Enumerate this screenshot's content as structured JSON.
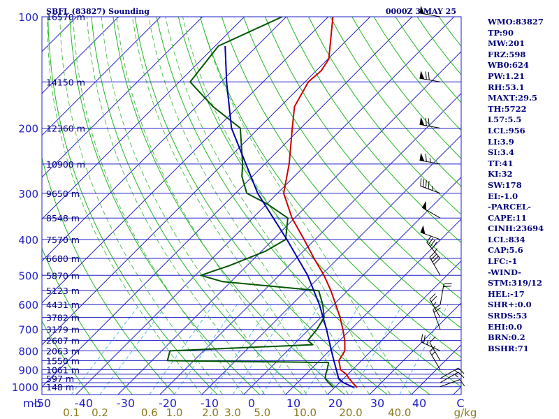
{
  "header": {
    "station": "SBFL (83827) Sounding",
    "time": "0000Z  3 MAY 25"
  },
  "indices": [
    "WMO:83827",
    "TP:90",
    "MW:201",
    "FRZ:598",
    "WB0:624",
    "PW:1.21",
    "RH:53.1",
    "MAXT:29.5",
    "TH:5722",
    "L57:5.5",
    "LCL:956",
    "LI:3.9",
    "SI:3.4",
    "TT:41",
    "KI:32",
    "SW:178",
    "EI:-1.0",
    "-PARCEL-",
    "CAPE:11",
    "CINH:23694",
    "LCL:834",
    "CAP:5.6",
    "LFC:-1",
    "-WIND-",
    "STM:319/12",
    "HEL:-17",
    "SHR+:0.0",
    "SRDS:53",
    "EHI:0.0",
    "BRN:0.2",
    "BSHR:71"
  ],
  "colors": {
    "isobar": "#1f1fc8",
    "isotherm": "#1f1fc8",
    "dry_adiabat": "#22b822",
    "moist_adiabat": "#55c055",
    "mixing_ratio": "#55b8e8",
    "temperature": "#cc0000",
    "dewpoint": "#005500",
    "parcel": "#0000aa",
    "wind": "#000000",
    "text": "#00007a"
  },
  "chart_data": {
    "type": "skew-t",
    "title": "SBFL (83827) Sounding",
    "xlabel": "C",
    "ylabel": "mb",
    "x_ticks": [
      "-50",
      "-40",
      "-30",
      "-20",
      "-10",
      "0",
      "10",
      "20",
      "30",
      "40"
    ],
    "mixing_ratio_ticks": [
      "0.1",
      "0.2",
      "0.6",
      "1.0",
      "2.0",
      "3.0",
      "5.0",
      "10.0",
      "20.0",
      "40.0"
    ],
    "mixing_ratio_unit": "g/kg",
    "pressure_ticks": [
      "100",
      "200",
      "300",
      "400",
      "500",
      "600",
      "700",
      "800",
      "900",
      "1000"
    ],
    "pressure_levels": [
      100,
      150,
      200,
      250,
      300,
      350,
      400,
      450,
      500,
      550,
      600,
      650,
      700,
      750,
      800,
      850,
      900,
      925,
      950,
      975,
      1000
    ],
    "xlim": [
      -50,
      50
    ],
    "plim": [
      1050,
      100
    ],
    "heights": [
      {
        "p": 100,
        "label": "16570 m"
      },
      {
        "p": 150,
        "label": "14150 m"
      },
      {
        "p": 200,
        "label": "12360 m"
      },
      {
        "p": 250,
        "label": "10900 m"
      },
      {
        "p": 300,
        "label": "9650 m"
      },
      {
        "p": 350,
        "label": "8548 m"
      },
      {
        "p": 400,
        "label": "7570 m"
      },
      {
        "p": 450,
        "label": "6680 m"
      },
      {
        "p": 500,
        "label": "5870 m"
      },
      {
        "p": 550,
        "label": "5123 m"
      },
      {
        "p": 600,
        "label": "4431 m"
      },
      {
        "p": 650,
        "label": "3782 m"
      },
      {
        "p": 700,
        "label": "3179 m"
      },
      {
        "p": 750,
        "label": "2607 m"
      },
      {
        "p": 800,
        "label": "2063 m"
      },
      {
        "p": 850,
        "label": "1550 m"
      },
      {
        "p": 900,
        "label": "1061 m"
      },
      {
        "p": 950,
        "label": "597 m"
      },
      {
        "p": 1000,
        "label": "148 m"
      }
    ],
    "series": [
      {
        "role": "temperature",
        "points": [
          [
            1005,
            25.4
          ],
          [
            1000,
            25.0
          ],
          [
            975,
            23.1
          ],
          [
            950,
            21.3
          ],
          [
            925,
            19.6
          ],
          [
            900,
            17.2
          ],
          [
            850,
            14.6
          ],
          [
            800,
            13.7
          ],
          [
            750,
            11.2
          ],
          [
            700,
            8.1
          ],
          [
            650,
            4.6
          ],
          [
            600,
            0.5
          ],
          [
            550,
            -4.0
          ],
          [
            500,
            -9.3
          ],
          [
            450,
            -15.7
          ],
          [
            400,
            -22.6
          ],
          [
            350,
            -30.6
          ],
          [
            300,
            -38.5
          ],
          [
            250,
            -44.2
          ],
          [
            200,
            -52.0
          ],
          [
            175,
            -56.6
          ],
          [
            150,
            -59.2
          ],
          [
            140,
            -58.8
          ],
          [
            130,
            -59.8
          ],
          [
            100,
            -68.9
          ]
        ]
      },
      {
        "role": "dewpoint",
        "points": [
          [
            1005,
            19.5
          ],
          [
            1000,
            19.4
          ],
          [
            975,
            17.4
          ],
          [
            950,
            15.6
          ],
          [
            925,
            14.7
          ],
          [
            900,
            14.0
          ],
          [
            860,
            12.6
          ],
          [
            850,
            -26.3
          ],
          [
            800,
            -28.0
          ],
          [
            770,
            4.6
          ],
          [
            750,
            2.4
          ],
          [
            700,
            1.9
          ],
          [
            650,
            0.8
          ],
          [
            600,
            -2.6
          ],
          [
            550,
            -6.9
          ],
          [
            520,
            -32.0
          ],
          [
            500,
            -38.7
          ],
          [
            470,
            -34.1
          ],
          [
            430,
            -29.0
          ],
          [
            400,
            -27.0
          ],
          [
            350,
            -31.6
          ],
          [
            320,
            -40.1
          ],
          [
            300,
            -47.3
          ],
          [
            270,
            -52.5
          ],
          [
            250,
            -55.3
          ],
          [
            200,
            -64.4
          ],
          [
            175,
            -76.0
          ],
          [
            150,
            -87.4
          ],
          [
            120,
            -89.2
          ],
          [
            100,
            -81.0
          ]
        ]
      },
      {
        "role": "parcel",
        "points": [
          [
            1005,
            24.6
          ],
          [
            975,
            20.9
          ],
          [
            950,
            18.8
          ],
          [
            900,
            16.2
          ],
          [
            850,
            13.4
          ],
          [
            800,
            10.5
          ],
          [
            700,
            4.2
          ],
          [
            600,
            -3.4
          ],
          [
            500,
            -13.2
          ],
          [
            400,
            -26.7
          ],
          [
            300,
            -44.7
          ],
          [
            200,
            -66.5
          ],
          [
            150,
            -78.7
          ],
          [
            120,
            -87.6
          ]
        ]
      }
    ],
    "winds": [
      {
        "p": 1000,
        "dir": 70,
        "spd": 10
      },
      {
        "p": 975,
        "dir": 60,
        "spd": 15
      },
      {
        "p": 950,
        "dir": 60,
        "spd": 15
      },
      {
        "p": 900,
        "dir": 330,
        "spd": 15
      },
      {
        "p": 850,
        "dir": 330,
        "spd": 10
      },
      {
        "p": 800,
        "dir": 295,
        "spd": 25
      },
      {
        "p": 700,
        "dir": 340,
        "spd": 20
      },
      {
        "p": 650,
        "dir": 330,
        "spd": 25
      },
      {
        "p": 600,
        "dir": 10,
        "spd": 20
      },
      {
        "p": 500,
        "dir": 330,
        "spd": 40
      },
      {
        "p": 450,
        "dir": 320,
        "spd": 45
      },
      {
        "p": 400,
        "dir": 290,
        "spd": 50
      },
      {
        "p": 350,
        "dir": 300,
        "spd": 50
      },
      {
        "p": 300,
        "dir": 290,
        "spd": 45
      },
      {
        "p": 250,
        "dir": 280,
        "spd": 65
      },
      {
        "p": 200,
        "dir": 280,
        "spd": 70
      },
      {
        "p": 150,
        "dir": 280,
        "spd": 70
      },
      {
        "p": 100,
        "dir": 280,
        "spd": 55
      }
    ]
  }
}
